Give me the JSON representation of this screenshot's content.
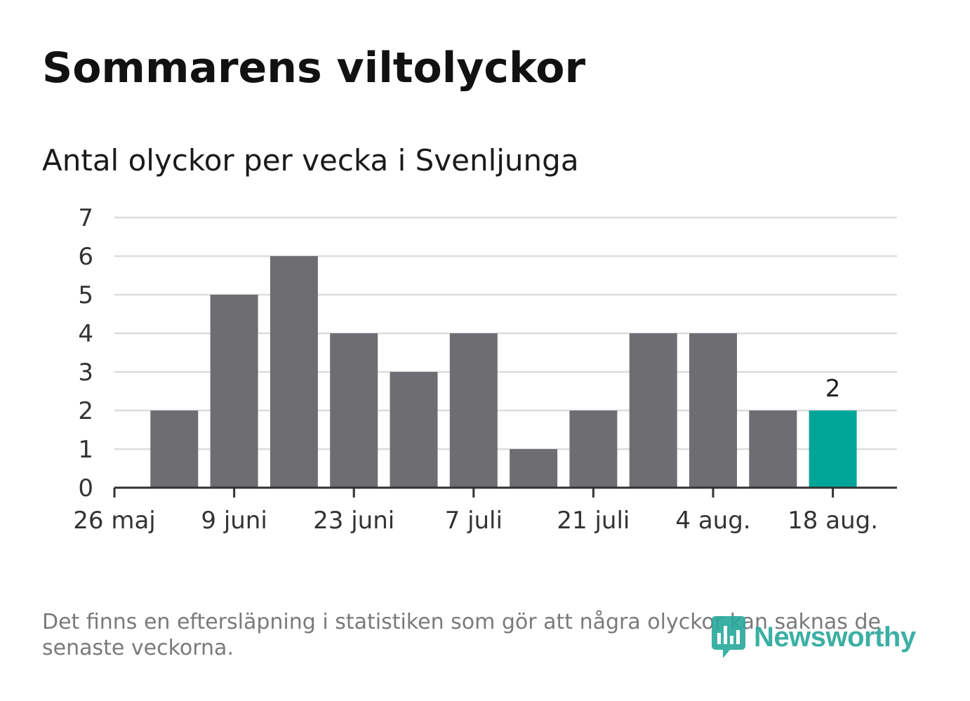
{
  "header": {
    "title": "Sommarens viltolyckor",
    "subtitle": "Antal olyckor per vecka i Svenljunga"
  },
  "chart_data": {
    "type": "bar",
    "x": [
      "2024-06-02",
      "2024-06-09",
      "2024-06-16",
      "2024-06-23",
      "2024-06-30",
      "2024-07-07",
      "2024-07-14",
      "2024-07-21",
      "2024-07-28",
      "2024-08-04",
      "2024-08-11",
      "2024-08-18"
    ],
    "values": [
      2,
      5,
      6,
      4,
      3,
      4,
      1,
      2,
      4,
      4,
      2,
      2
    ],
    "ylim": [
      0,
      7
    ],
    "yticks": [
      0,
      1,
      2,
      3,
      4,
      5,
      6,
      7
    ],
    "xtick_labels": [
      "26 maj",
      "9 juni",
      "23 juni",
      "7 juli",
      "21 juli",
      "4 aug.",
      "18 aug."
    ],
    "highlight_index": 11,
    "highlight_label": "2",
    "colors": {
      "bar": "#6e6d72",
      "highlight": "#00a598",
      "grid": "#dcdcdc",
      "axis": "#333333"
    },
    "grid": true
  },
  "footnote": "Det finns en eftersläpning i statistiken som gör att några olyckor kan saknas de senaste veckorna.",
  "logo": {
    "text": "Newsworthy",
    "color": "#27a79b"
  }
}
